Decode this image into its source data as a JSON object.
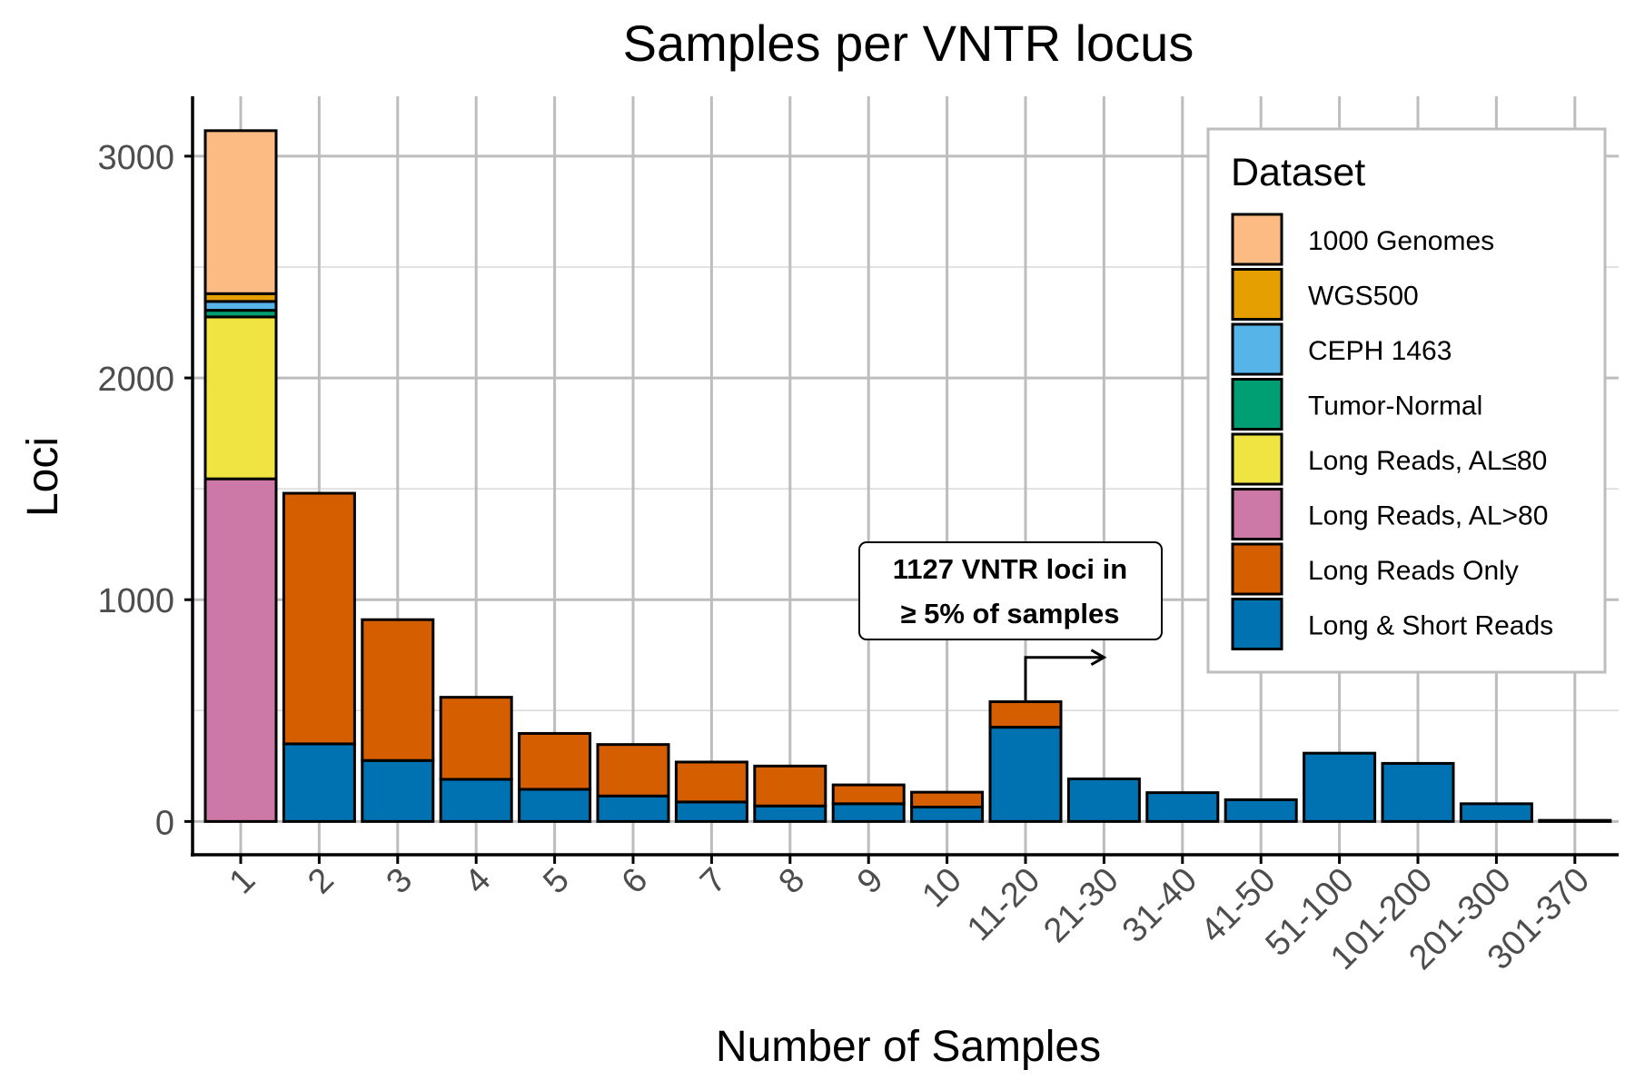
{
  "chart_data": {
    "type": "bar",
    "stacked": true,
    "title": "Samples per VNTR locus",
    "xlabel": "Number of Samples",
    "ylabel": "Loci",
    "ylim": [
      -150,
      3270
    ],
    "yticks": [
      0,
      1000,
      2000,
      3000
    ],
    "grid": true,
    "legend_position": "top-right",
    "legend_title": "Dataset",
    "categories": [
      "1",
      "2",
      "3",
      "4",
      "5",
      "6",
      "7",
      "8",
      "9",
      "10",
      "11-20",
      "21-30",
      "31-40",
      "41-50",
      "51-100",
      "101-200",
      "201-300",
      "301-370"
    ],
    "series": [
      {
        "name": "Long & Short Reads",
        "color": "#0072B2",
        "values": [
          0,
          350,
          275,
          190,
          145,
          115,
          88,
          70,
          80,
          65,
          425,
          192,
          130,
          98,
          308,
          262,
          80,
          5
        ]
      },
      {
        "name": "Long Reads Only",
        "color": "#D55E00",
        "values": [
          0,
          1130,
          635,
          370,
          252,
          232,
          180,
          180,
          85,
          67,
          115,
          0,
          0,
          0,
          0,
          0,
          0,
          0
        ]
      },
      {
        "name": "Long Reads, AL>80",
        "color": "#CC79A7",
        "values": [
          1545,
          0,
          0,
          0,
          0,
          0,
          0,
          0,
          0,
          0,
          0,
          0,
          0,
          0,
          0,
          0,
          0,
          0
        ]
      },
      {
        "name": "Long Reads, AL≤80",
        "color": "#F0E442",
        "values": [
          730,
          0,
          0,
          0,
          0,
          0,
          0,
          0,
          0,
          0,
          0,
          0,
          0,
          0,
          0,
          0,
          0,
          0
        ]
      },
      {
        "name": "Tumor-Normal",
        "color": "#009E73",
        "values": [
          30,
          0,
          0,
          0,
          0,
          0,
          0,
          0,
          0,
          0,
          0,
          0,
          0,
          0,
          0,
          0,
          0,
          0
        ]
      },
      {
        "name": "CEPH 1463",
        "color": "#56B4E9",
        "values": [
          40,
          0,
          0,
          0,
          0,
          0,
          0,
          0,
          0,
          0,
          0,
          0,
          0,
          0,
          0,
          0,
          0,
          0
        ]
      },
      {
        "name": "WGS500",
        "color": "#E69F00",
        "values": [
          35,
          0,
          0,
          0,
          0,
          0,
          0,
          0,
          0,
          0,
          0,
          0,
          0,
          0,
          0,
          0,
          0,
          0
        ]
      },
      {
        "name": "1000 Genomes",
        "color": "#FDBB84",
        "values": [
          735,
          0,
          0,
          0,
          0,
          0,
          0,
          0,
          0,
          0,
          0,
          0,
          0,
          0,
          0,
          0,
          0,
          0
        ]
      }
    ],
    "legend_order": [
      "1000 Genomes",
      "WGS500",
      "CEPH 1463",
      "Tumor-Normal",
      "Long Reads, AL≤80",
      "Long Reads, AL>80",
      "Long Reads Only",
      "Long & Short Reads"
    ],
    "annotation": {
      "lines": [
        "1127 VNTR loci in",
        "≥ 5% of samples"
      ],
      "arrow_from_category": "11-20",
      "arrow_to_category": "21-30"
    }
  }
}
